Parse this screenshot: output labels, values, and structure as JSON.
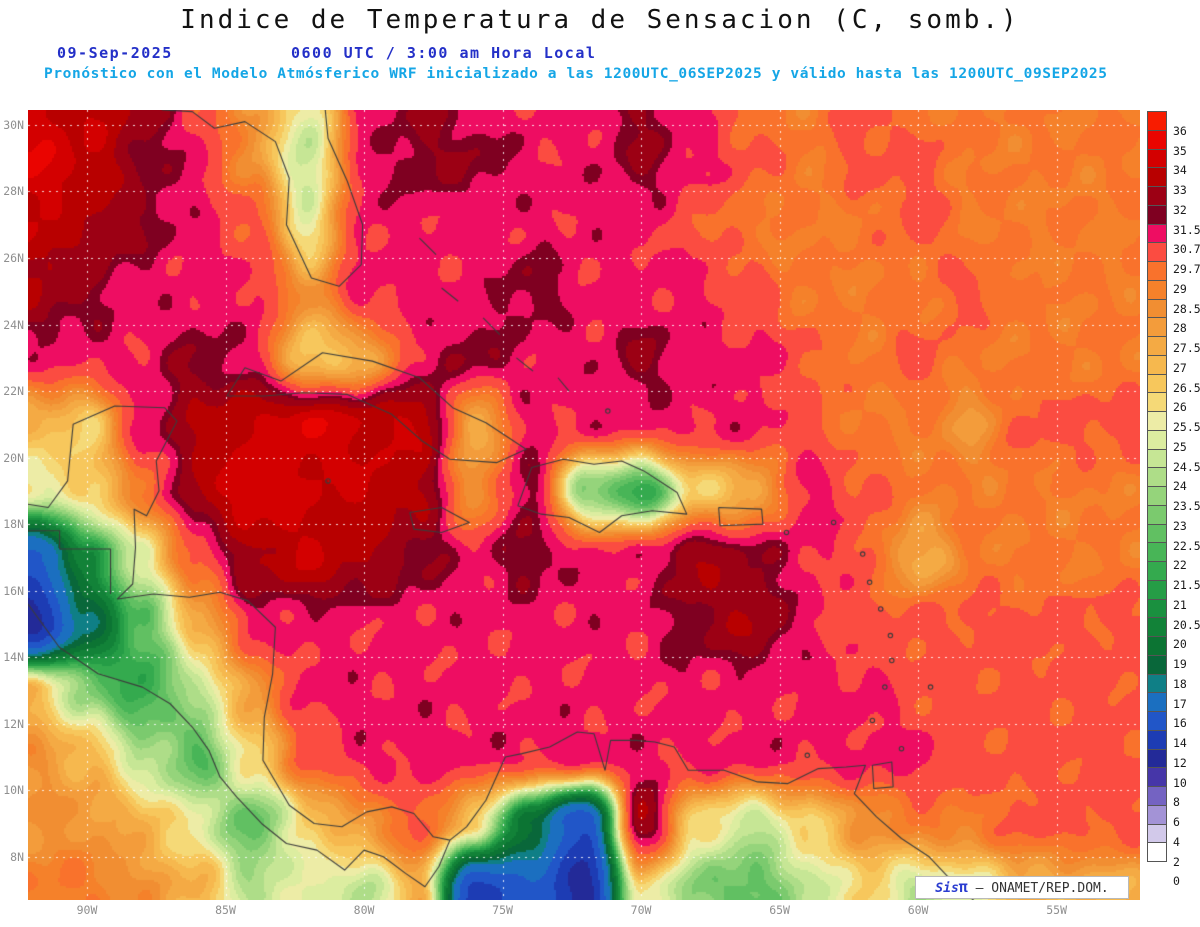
{
  "header": {
    "title": "Indice de Temperatura de Sensacion (C, somb.)",
    "date": "09-Sep-2025",
    "time": "0600 UTC / 3:00 am Hora Local",
    "model_line": "Pronóstico con el Modelo Atmósferico WRF inicializado a las 1200UTC_06SEP2025 y válido hasta las  1200UTC_09SEP2025"
  },
  "watermark": {
    "prefix": "Sis",
    "pi": "π",
    "suffix": " – ONAMET/REP.DOM."
  },
  "axes": {
    "lat_ticks": [
      {
        "label": "30N",
        "value": 30
      },
      {
        "label": "28N",
        "value": 28
      },
      {
        "label": "26N",
        "value": 26
      },
      {
        "label": "24N",
        "value": 24
      },
      {
        "label": "22N",
        "value": 22
      },
      {
        "label": "20N",
        "value": 20
      },
      {
        "label": "18N",
        "value": 18
      },
      {
        "label": "16N",
        "value": 16
      },
      {
        "label": "14N",
        "value": 14
      },
      {
        "label": "12N",
        "value": 12
      },
      {
        "label": "10N",
        "value": 10
      },
      {
        "label": "8N",
        "value": 8
      }
    ],
    "lon_ticks": [
      {
        "label": "90W",
        "value": 90
      },
      {
        "label": "85W",
        "value": 85
      },
      {
        "label": "80W",
        "value": 80
      },
      {
        "label": "75W",
        "value": 75
      },
      {
        "label": "70W",
        "value": 70
      },
      {
        "label": "65W",
        "value": 65
      },
      {
        "label": "60W",
        "value": 60
      },
      {
        "label": "55W",
        "value": 55
      }
    ]
  },
  "colorbar": {
    "labels": [
      36,
      35,
      34,
      33,
      32,
      31.5,
      30.7,
      29.7,
      29,
      28.5,
      28,
      27.5,
      27,
      26.5,
      26,
      25.5,
      25,
      24.5,
      24,
      23.5,
      23,
      22.5,
      22,
      21.5,
      21,
      20.5,
      20,
      19,
      18,
      17,
      16,
      14,
      12,
      10,
      8,
      6,
      4,
      2,
      0
    ],
    "colors": [
      "#f81c00",
      "#ea0400",
      "#d30000",
      "#b80000",
      "#9c0014",
      "#7f0021",
      "#ee0d62",
      "#fb4c41",
      "#f9722c",
      "#f5812a",
      "#f18e32",
      "#f39c3b",
      "#f4aa44",
      "#f6b84e",
      "#f7c75c",
      "#f5d977",
      "#edeca6",
      "#dceda0",
      "#c6e695",
      "#aedd88",
      "#95d47b",
      "#7bca6e",
      "#61c062",
      "#48b557",
      "#34aa4e",
      "#259d46",
      "#1a903f",
      "#128238",
      "#0c7433",
      "#09673a",
      "#0f7f86",
      "#1b6fc0",
      "#2156c8",
      "#1d3cb4",
      "#232a98",
      "#4636a8",
      "#7463c2",
      "#a393d6",
      "#d2c9ea",
      "#ffffff"
    ]
  },
  "chart_data": {
    "type": "heatmap",
    "title": "Indice de Temperatura de Sensacion (C, somb.)",
    "units": "C",
    "lon_range": [
      92.13,
      51.99
    ],
    "lat_range": [
      6.7,
      30.45
    ],
    "grid_lons": [
      92,
      90,
      88,
      86,
      84,
      82,
      80,
      78,
      76,
      74,
      72,
      70,
      68,
      66,
      64,
      62,
      60,
      58,
      56
    ],
    "grid_lats": [
      31,
      29,
      27,
      25,
      23,
      21,
      19,
      17,
      15,
      13,
      11,
      9,
      7
    ],
    "values": [
      [
        34,
        34,
        33,
        30,
        28,
        25,
        31,
        32,
        31,
        31,
        31,
        32,
        31,
        29,
        29,
        30,
        29,
        29,
        29
      ],
      [
        35,
        34,
        32,
        31,
        28,
        24,
        31,
        32,
        32,
        31,
        31,
        32,
        31,
        30,
        29,
        30,
        30,
        29,
        29
      ],
      [
        34,
        33,
        32,
        31,
        30,
        25,
        31,
        31,
        31,
        31,
        31,
        31,
        30,
        29,
        29,
        29,
        30,
        29,
        29
      ],
      [
        33,
        32,
        31,
        31,
        31,
        28,
        31,
        31,
        31,
        32,
        31,
        31,
        31,
        30,
        29,
        29,
        29,
        30,
        29
      ],
      [
        31,
        31,
        31,
        32,
        31,
        26,
        27,
        31,
        32,
        31,
        31,
        32,
        31,
        31,
        30,
        29,
        30,
        29,
        29
      ],
      [
        27,
        26,
        31,
        33,
        34,
        35,
        34,
        34,
        27,
        31,
        31,
        31,
        31,
        31,
        30,
        29,
        29,
        28,
        30
      ],
      [
        25,
        26,
        29,
        33,
        35,
        34,
        34,
        33,
        28,
        32,
        23,
        21,
        26,
        27,
        31,
        30,
        29,
        29,
        29
      ],
      [
        13,
        20,
        25,
        30,
        33,
        34,
        33,
        32,
        31,
        32,
        31,
        31,
        33,
        32,
        31,
        30,
        27,
        29,
        29
      ],
      [
        9,
        17,
        22,
        27,
        31,
        31,
        31,
        31,
        31,
        31,
        31,
        31,
        32,
        33,
        31,
        30,
        30,
        30,
        30
      ],
      [
        27,
        23,
        21,
        24,
        28,
        31,
        31,
        31,
        31,
        31,
        31,
        31,
        31,
        31,
        31,
        31,
        30,
        30,
        30
      ],
      [
        28,
        27,
        24,
        22,
        26,
        30,
        31,
        31,
        31,
        31,
        31,
        31,
        31,
        31,
        31,
        31,
        31,
        30,
        30
      ],
      [
        28,
        28,
        27,
        25,
        22,
        26,
        28,
        30,
        26,
        18,
        12,
        33,
        26,
        24,
        26,
        28,
        29,
        29,
        30
      ],
      [
        29,
        29,
        28,
        27,
        24,
        25,
        24,
        27,
        11,
        14,
        9,
        26,
        23,
        22,
        24,
        26,
        24,
        25,
        27
      ]
    ],
    "coastlines": [
      [
        [
          87.3,
          30.45
        ],
        [
          86.2,
          30.4
        ],
        [
          85.4,
          29.9
        ],
        [
          84.3,
          30.1
        ],
        [
          83.2,
          29.5
        ],
        [
          82.7,
          28.4
        ],
        [
          82.8,
          27.0
        ],
        [
          81.9,
          25.4
        ],
        [
          80.9,
          25.15
        ],
        [
          80.1,
          25.8
        ],
        [
          80.05,
          27.0
        ],
        [
          80.6,
          28.3
        ],
        [
          81.3,
          29.6
        ],
        [
          81.4,
          30.45
        ]
      ],
      [
        [
          84.95,
          21.85
        ],
        [
          84.3,
          22.7
        ],
        [
          83.0,
          22.3
        ],
        [
          81.5,
          23.15
        ],
        [
          79.7,
          22.9
        ],
        [
          78.0,
          22.4
        ],
        [
          76.8,
          21.5
        ],
        [
          75.6,
          21.05
        ],
        [
          74.15,
          20.25
        ],
        [
          75.2,
          19.85
        ],
        [
          76.9,
          19.95
        ],
        [
          77.9,
          20.5
        ],
        [
          79.0,
          21.3
        ],
        [
          80.6,
          21.9
        ],
        [
          82.2,
          21.95
        ],
        [
          83.6,
          21.85
        ],
        [
          84.95,
          21.85
        ]
      ],
      [
        [
          74.45,
          18.55
        ],
        [
          73.95,
          19.7
        ],
        [
          72.8,
          19.95
        ],
        [
          71.7,
          19.8
        ],
        [
          70.7,
          19.9
        ],
        [
          69.9,
          19.6
        ],
        [
          68.7,
          18.95
        ],
        [
          68.35,
          18.3
        ],
        [
          69.6,
          18.4
        ],
        [
          70.7,
          18.25
        ],
        [
          71.5,
          17.75
        ],
        [
          72.6,
          18.2
        ],
        [
          73.6,
          18.3
        ],
        [
          74.45,
          18.55
        ]
      ],
      [
        [
          78.35,
          18.35
        ],
        [
          77.2,
          18.5
        ],
        [
          76.2,
          18.05
        ],
        [
          77.2,
          17.75
        ],
        [
          78.2,
          17.85
        ],
        [
          78.35,
          18.35
        ]
      ],
      [
        [
          67.2,
          18.5
        ],
        [
          65.65,
          18.45
        ],
        [
          65.6,
          18.0
        ],
        [
          67.15,
          17.95
        ],
        [
          67.2,
          18.5
        ]
      ],
      [
        [
          92.13,
          18.6
        ],
        [
          91.4,
          18.5
        ],
        [
          90.7,
          19.3
        ],
        [
          90.5,
          21.0
        ],
        [
          89.0,
          21.55
        ],
        [
          87.2,
          21.5
        ],
        [
          86.75,
          21.1
        ],
        [
          87.5,
          19.9
        ],
        [
          87.4,
          19.0
        ],
        [
          87.85,
          18.25
        ],
        [
          88.3,
          18.45
        ],
        [
          88.25,
          17.3
        ],
        [
          88.35,
          16.2
        ],
        [
          88.9,
          15.75
        ],
        [
          87.6,
          15.9
        ],
        [
          86.3,
          15.8
        ],
        [
          85.2,
          15.95
        ],
        [
          84.2,
          15.7
        ],
        [
          83.2,
          14.9
        ],
        [
          83.3,
          13.5
        ],
        [
          83.6,
          12.2
        ],
        [
          83.65,
          10.9
        ],
        [
          82.7,
          9.55
        ],
        [
          81.8,
          9.0
        ],
        [
          80.8,
          8.9
        ],
        [
          79.9,
          9.35
        ],
        [
          79.0,
          9.5
        ],
        [
          78.2,
          9.3
        ],
        [
          77.5,
          8.6
        ],
        [
          76.9,
          8.5
        ],
        [
          76.3,
          8.9
        ],
        [
          75.6,
          9.7
        ],
        [
          74.9,
          11.0
        ],
        [
          74.3,
          11.1
        ],
        [
          73.3,
          11.3
        ],
        [
          72.3,
          11.75
        ],
        [
          71.7,
          11.7
        ],
        [
          71.3,
          10.6
        ],
        [
          71.1,
          11.5
        ],
        [
          70.2,
          11.5
        ],
        [
          69.5,
          11.45
        ],
        [
          68.8,
          11.3
        ],
        [
          68.3,
          10.6
        ],
        [
          67.0,
          10.6
        ],
        [
          65.8,
          10.25
        ],
        [
          64.7,
          10.2
        ],
        [
          63.6,
          10.65
        ],
        [
          62.6,
          10.7
        ],
        [
          61.9,
          10.75
        ],
        [
          62.3,
          9.9
        ],
        [
          61.5,
          9.2
        ],
        [
          60.6,
          8.55
        ],
        [
          59.6,
          8.0
        ],
        [
          58.7,
          7.2
        ],
        [
          58.0,
          6.7
        ]
      ],
      [
        [
          92.13,
          15.6
        ],
        [
          91.0,
          14.3
        ],
        [
          89.6,
          13.5
        ],
        [
          88.0,
          13.1
        ],
        [
          87.0,
          12.6
        ],
        [
          86.2,
          11.9
        ],
        [
          85.6,
          11.2
        ],
        [
          85.2,
          10.4
        ],
        [
          84.6,
          9.8
        ],
        [
          83.7,
          9.0
        ],
        [
          82.8,
          8.4
        ],
        [
          81.7,
          8.2
        ],
        [
          80.7,
          7.6
        ],
        [
          80.0,
          8.2
        ],
        [
          79.3,
          8.0
        ],
        [
          78.5,
          7.5
        ],
        [
          77.8,
          7.1
        ],
        [
          77.3,
          7.7
        ],
        [
          76.9,
          8.5
        ]
      ],
      [
        [
          92.13,
          17.8
        ],
        [
          90.99,
          17.8
        ],
        [
          90.99,
          17.25
        ],
        [
          89.15,
          17.25
        ],
        [
          89.15,
          15.9
        ]
      ],
      [
        [
          61.65,
          10.75
        ],
        [
          60.95,
          10.85
        ],
        [
          60.9,
          10.1
        ],
        [
          61.6,
          10.05
        ],
        [
          61.65,
          10.75
        ]
      ],
      [
        [
          78.0,
          26.6
        ],
        [
          77.4,
          26.1
        ]
      ],
      [
        [
          77.2,
          25.1
        ],
        [
          76.6,
          24.7
        ]
      ],
      [
        [
          75.7,
          24.2
        ],
        [
          75.1,
          23.7
        ]
      ],
      [
        [
          74.5,
          23.0
        ],
        [
          73.9,
          22.6
        ]
      ],
      [
        [
          73.0,
          22.4
        ],
        [
          72.6,
          22.0
        ]
      ]
    ],
    "islands": [
      [
        63.05,
        18.05
      ],
      [
        62.0,
        17.1
      ],
      [
        61.75,
        16.25
      ],
      [
        61.35,
        15.45
      ],
      [
        61.0,
        14.65
      ],
      [
        60.95,
        13.9
      ],
      [
        61.2,
        13.1
      ],
      [
        61.65,
        12.1
      ],
      [
        59.55,
        13.1
      ],
      [
        64.75,
        17.75
      ],
      [
        60.6,
        11.25
      ],
      [
        64.0,
        11.05
      ],
      [
        81.3,
        19.3
      ],
      [
        71.2,
        21.4
      ]
    ]
  }
}
